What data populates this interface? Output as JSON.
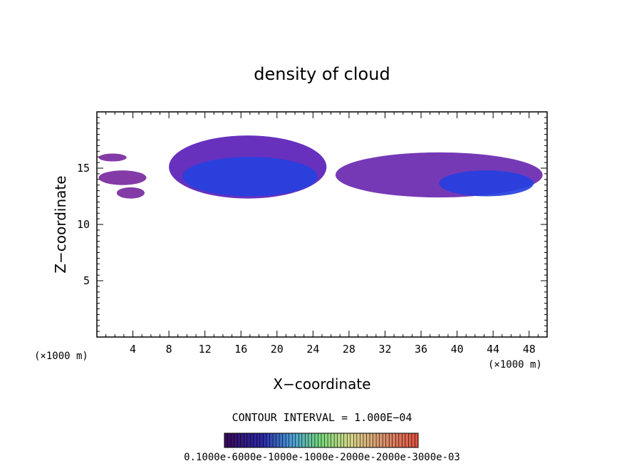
{
  "chart_data": {
    "type": "contour",
    "title": "density of cloud",
    "xlabel": "X−coordinate",
    "ylabel": "Z−coordinate",
    "x_units_left": "(×1000 m)",
    "x_units_right": "(×1000 m)",
    "xlim": [
      0,
      50
    ],
    "ylim": [
      0,
      20
    ],
    "x_ticks": [
      4,
      8,
      12,
      16,
      20,
      24,
      28,
      32,
      36,
      40,
      44,
      48
    ],
    "y_ticks": [
      5,
      10,
      15
    ],
    "contour_interval_label": "CONTOUR INTERVAL =  1.000E−04",
    "colorbar_label": "0.1000e-6000e-1000e-1000e-2000e-2000e-3000e-03",
    "cloud_regions": [
      {
        "name": "left-fragment-upper",
        "x": [
          0.2,
          3.3
        ],
        "z": [
          15.6,
          16.3
        ],
        "density": 5e-05
      },
      {
        "name": "left-fragment-lower",
        "x": [
          0.2,
          5.5
        ],
        "z": [
          13.5,
          14.8
        ],
        "density": 5e-05
      },
      {
        "name": "left-fragment-base",
        "x": [
          2.2,
          5.3
        ],
        "z": [
          12.3,
          13.3
        ],
        "density": 4e-05
      },
      {
        "name": "main-cloud",
        "x": [
          8.0,
          25.5
        ],
        "z": [
          12.3,
          17.9
        ],
        "density": 0.00012
      },
      {
        "name": "main-cloud-core",
        "x": [
          9.5,
          24.5
        ],
        "z": [
          12.5,
          16.0
        ],
        "density": 0.00035
      },
      {
        "name": "right-cloud",
        "x": [
          26.5,
          49.5
        ],
        "z": [
          12.4,
          16.4
        ],
        "density": 8e-05
      },
      {
        "name": "right-cloud-core",
        "x": [
          38.0,
          48.5
        ],
        "z": [
          12.5,
          14.8
        ],
        "density": 0.00025
      }
    ]
  }
}
